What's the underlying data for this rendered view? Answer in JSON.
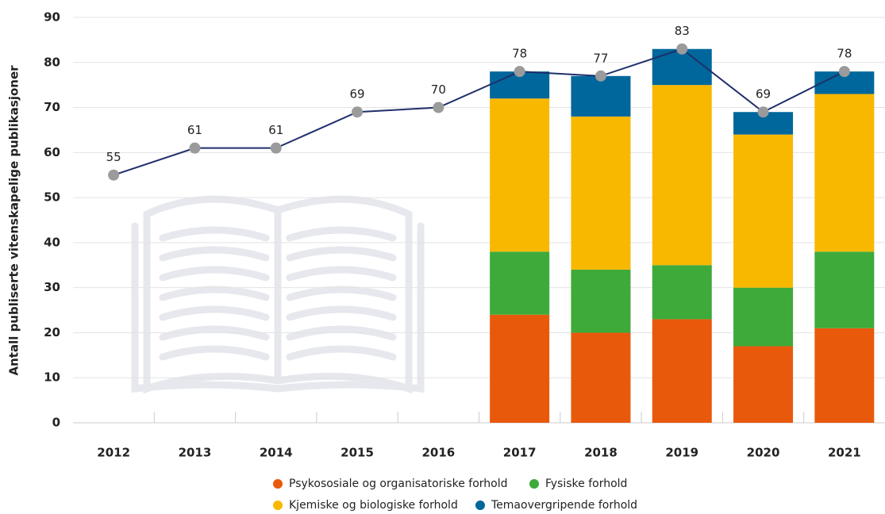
{
  "chart_data": {
    "type": "bar",
    "stacked": true,
    "y_axis_label": "Antall publiserte vitenskapelige publikasjoner",
    "categories": [
      "2012",
      "2013",
      "2014",
      "2015",
      "2016",
      "2017",
      "2018",
      "2019",
      "2020",
      "2021"
    ],
    "series": [
      {
        "name": "Psykososiale og organisatoriske forhold",
        "color": "#e8590c",
        "values": [
          null,
          null,
          null,
          null,
          null,
          24,
          20,
          23,
          17,
          21
        ]
      },
      {
        "name": "Fysiske forhold",
        "color": "#3daa3a",
        "values": [
          null,
          null,
          null,
          null,
          null,
          14,
          14,
          12,
          13,
          17
        ]
      },
      {
        "name": "Kjemiske og biologiske forhold",
        "color": "#f9b800",
        "values": [
          null,
          null,
          null,
          null,
          null,
          34,
          34,
          40,
          34,
          35
        ]
      },
      {
        "name": "Temaovergripende forhold",
        "color": "#00679c",
        "values": [
          null,
          null,
          null,
          null,
          null,
          6,
          9,
          8,
          5,
          5
        ]
      }
    ],
    "line": {
      "color": "#1f2f6b",
      "marker_color": "#9b9b9b",
      "values": [
        55,
        61,
        61,
        69,
        70,
        78,
        77,
        83,
        69,
        78
      ]
    },
    "ylim": [
      0,
      90
    ],
    "yticks": [
      0,
      10,
      20,
      30,
      40,
      50,
      60,
      70,
      80,
      90
    ],
    "grid": true,
    "highlight_index": 9,
    "highlight_color": "#c8102e"
  }
}
